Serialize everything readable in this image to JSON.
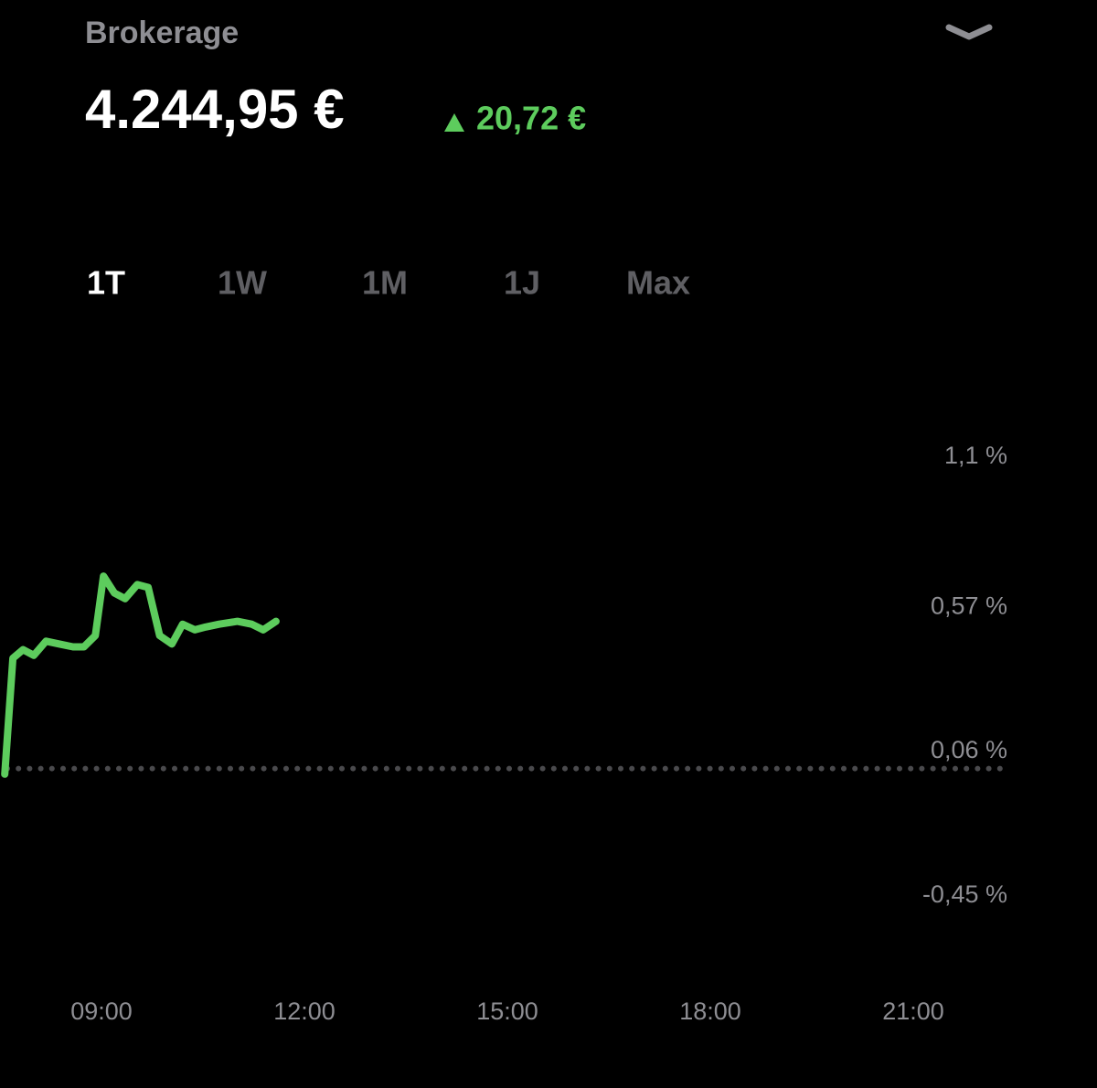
{
  "header": {
    "account": "Brokerage",
    "balance": "4.244,95 €",
    "change": "20,72 €"
  },
  "tabs": [
    "1T",
    "1W",
    "1M",
    "1J",
    "Max"
  ],
  "active_tab": 0,
  "chart_data": {
    "type": "line",
    "color": "#5dcc5d",
    "x": [
      7.57,
      7.69,
      7.84,
      8.0,
      8.18,
      8.38,
      8.58,
      8.74,
      8.91,
      9.03,
      9.19,
      9.35,
      9.53,
      9.69,
      9.86,
      10.04,
      10.2,
      10.38,
      10.54,
      10.74,
      11.01,
      11.22,
      11.39,
      11.58
    ],
    "values": [
      -0.02,
      0.39,
      0.42,
      0.4,
      0.45,
      0.44,
      0.43,
      0.43,
      0.47,
      0.68,
      0.62,
      0.6,
      0.65,
      0.64,
      0.47,
      0.44,
      0.51,
      0.49,
      0.5,
      0.51,
      0.52,
      0.51,
      0.49,
      0.52
    ],
    "xlim": [
      7.5,
      22.5
    ],
    "xticks": [
      {
        "value": 9,
        "label": "09:00"
      },
      {
        "value": 12,
        "label": "12:00"
      },
      {
        "value": 15,
        "label": "15:00"
      },
      {
        "value": 18,
        "label": "18:00"
      },
      {
        "value": 21,
        "label": "21:00"
      }
    ],
    "ylim": [
      -0.45,
      1.1
    ],
    "yticks": [
      {
        "value": 1.1,
        "label": "1,1 %"
      },
      {
        "value": 0.57,
        "label": "0,57 %"
      },
      {
        "value": 0.06,
        "label": "0,06 %"
      },
      {
        "value": -0.45,
        "label": "-0,45 %"
      }
    ],
    "reference_line": 0
  }
}
